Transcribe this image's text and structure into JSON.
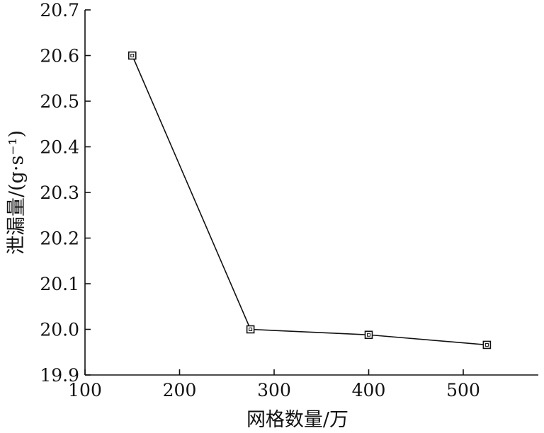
{
  "chart_data": {
    "type": "line",
    "title": "",
    "xlabel": "网格数量/万",
    "ylabel": "泄漏量/(g·s⁻¹)",
    "xlim": [
      100,
      575
    ],
    "ylim": [
      19.9,
      20.7
    ],
    "x_ticks": [
      100,
      200,
      300,
      400,
      500
    ],
    "x_tick_labels": [
      "100",
      "200",
      "300",
      "400",
      "500"
    ],
    "y_ticks": [
      19.9,
      20.0,
      20.1,
      20.2,
      20.3,
      20.4,
      20.5,
      20.6,
      20.7
    ],
    "y_tick_labels": [
      "19.9",
      "20.0",
      "20.1",
      "20.2",
      "20.3",
      "20.4",
      "20.5",
      "20.6",
      "20.7"
    ],
    "grid": false,
    "marker": "square",
    "series": [
      {
        "x": [
          150,
          275,
          400,
          525
        ],
        "values": [
          20.6,
          20.0,
          19.988,
          19.966
        ]
      }
    ]
  }
}
